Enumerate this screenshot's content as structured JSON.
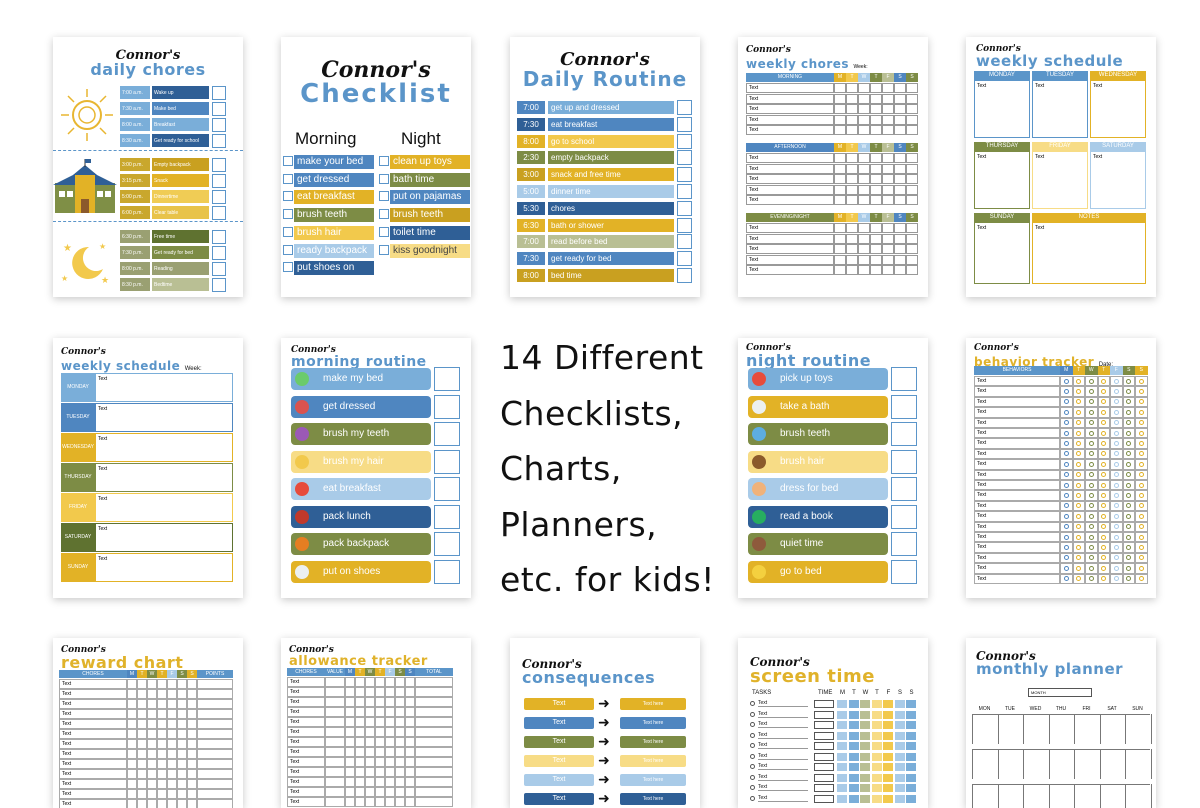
{
  "colors": {
    "blue": "#4f86c0",
    "lightblue": "#a9cbe8",
    "yellow": "#e2b226",
    "lightyellow": "#f7dc86",
    "olive": "#7d8c45",
    "sage": "#b9bf94",
    "navy": "#2f5f96"
  },
  "card1": {
    "name": "Connor's",
    "title": "daily chores",
    "morning": [
      {
        "time": "7:00 a.m.",
        "task": "Wake up"
      },
      {
        "time": "7:30 a.m.",
        "task": "Make bed"
      },
      {
        "time": "8:00 a.m.",
        "task": "Breakfast"
      },
      {
        "time": "8:30 a.m.",
        "task": "Get ready for school"
      }
    ],
    "afternoon": [
      {
        "time": "3:00 p.m.",
        "task": "Empty backpack"
      },
      {
        "time": "3:15 p.m.",
        "task": "Snack"
      },
      {
        "time": "5:00 p.m.",
        "task": "Dinnertime"
      },
      {
        "time": "6:00 p.m.",
        "task": "Clear table"
      }
    ],
    "evening": [
      {
        "time": "6:30 p.m.",
        "task": "Free time"
      },
      {
        "time": "7:30 p.m.",
        "task": "Get ready for bed"
      },
      {
        "time": "8:00 p.m.",
        "task": "Reading"
      },
      {
        "time": "8:30 p.m.",
        "task": "Bedtime"
      }
    ]
  },
  "card2": {
    "name": "Connor's",
    "title": "Checklist",
    "morning_label": "Morning",
    "night_label": "Night",
    "morning": [
      "make your bed",
      "get dressed",
      "eat breakfast",
      "brush teeth",
      "brush hair",
      "ready backpack",
      "put shoes on"
    ],
    "night": [
      "clean up toys",
      "bath time",
      "put on pajamas",
      "brush teeth",
      "toilet time",
      "kiss goodnight"
    ]
  },
  "card3": {
    "name": "Connor's",
    "title": "Daily Routine",
    "rows": [
      {
        "time": "7:00",
        "task": "get up and dressed"
      },
      {
        "time": "7:30",
        "task": "eat breakfast"
      },
      {
        "time": "8:00",
        "task": "go to school"
      },
      {
        "time": "2:30",
        "task": "empty backpack"
      },
      {
        "time": "3:00",
        "task": "snack and free time"
      },
      {
        "time": "5:00",
        "task": "dinner time"
      },
      {
        "time": "5:30",
        "task": "chores"
      },
      {
        "time": "6:30",
        "task": "bath or shower"
      },
      {
        "time": "7:00",
        "task": "read before bed"
      },
      {
        "time": "7:30",
        "task": "get ready for bed"
      },
      {
        "time": "8:00",
        "task": "bed time"
      }
    ]
  },
  "card4": {
    "name": "Connor's",
    "title": "weekly chores",
    "week_label": "Week:",
    "sections": [
      "MORNING",
      "AFTERNOON",
      "EVENING/NIGHT"
    ],
    "days": [
      "M",
      "T",
      "W",
      "T",
      "F",
      "S",
      "S"
    ],
    "cell": "Text"
  },
  "card5": {
    "name": "Connor's",
    "title": "weekly schedule",
    "days": [
      "MONDAY",
      "TUESDAY",
      "WEDNESDAY",
      "THURSDAY",
      "FRIDAY",
      "SATURDAY",
      "SUNDAY"
    ],
    "notes": "NOTES",
    "cell": "Text"
  },
  "card6": {
    "name": "Connor's",
    "title": "weekly schedule",
    "week_label": "Week:",
    "days": [
      "MONDAY",
      "TUESDAY",
      "WEDNESDAY",
      "THURSDAY",
      "FRIDAY",
      "SATURDAY",
      "SUNDAY"
    ],
    "cell": "Text"
  },
  "card7": {
    "name": "Connor's",
    "title": "morning routine",
    "items": [
      "make my bed",
      "get dressed",
      "brush my teeth",
      "brush my hair",
      "eat breakfast",
      "pack lunch",
      "pack backpack",
      "put on shoes"
    ]
  },
  "center_text": [
    "14 Different",
    "Checklists,",
    "Charts,",
    "Planners,",
    "etc. for kids!"
  ],
  "card8": {
    "name": "Connor's",
    "title": "night routine",
    "items": [
      "pick up toys",
      "take a bath",
      "brush teeth",
      "brush hair",
      "dress for bed",
      "read a book",
      "quiet time",
      "go to bed"
    ]
  },
  "card9": {
    "name": "Connor's",
    "title": "behavior tracker",
    "date_label": "Date:",
    "header": "BEHAVIORS",
    "days": [
      "M",
      "T",
      "W",
      "T",
      "F",
      "S",
      "S"
    ],
    "cell": "Text"
  },
  "card10": {
    "name": "Connor's",
    "title": "reward chart",
    "headers": [
      "CHORES",
      "M",
      "T",
      "W",
      "T",
      "F",
      "S",
      "S",
      "POINTS"
    ],
    "cell": "Text"
  },
  "card11": {
    "name": "Connor's",
    "title": "allowance tracker",
    "headers": [
      "CHORES",
      "VALUE",
      "M",
      "T",
      "W",
      "T",
      "F",
      "S",
      "S",
      "TOTAL"
    ],
    "cell": "Text"
  },
  "card12": {
    "name": "Connor's",
    "title": "consequences",
    "left": "Text",
    "right": "Text here"
  },
  "card13": {
    "name": "Connor's",
    "title": "screen time",
    "tasks_label": "TASKS",
    "time_label": "TIME",
    "days": [
      "M",
      "T",
      "W",
      "T",
      "F",
      "S",
      "S"
    ],
    "cell": "Text"
  },
  "card14": {
    "name": "Connor's",
    "title": "monthly planner",
    "month_label": "MONTH",
    "days": [
      "MON",
      "TUE",
      "WED",
      "THU",
      "FRI",
      "SAT",
      "SUN"
    ]
  }
}
